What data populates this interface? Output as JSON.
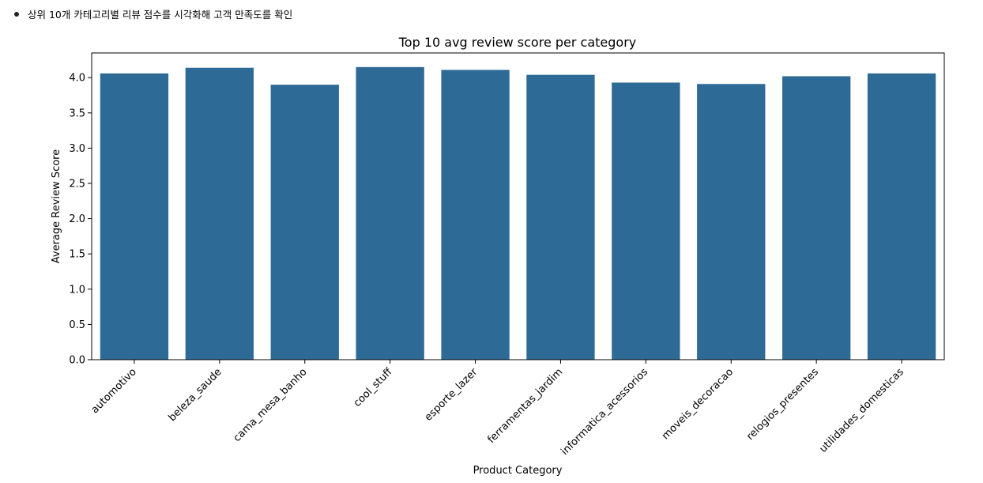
{
  "note": {
    "text": "상위 10개 카테고리별 리뷰 점수를 시각화해 고객 만족도를 확인"
  },
  "chart_data": {
    "type": "bar",
    "title": "Top 10 avg review score per category",
    "xlabel": "Product Category",
    "ylabel": "Average Review Score",
    "categories": [
      "automotivo",
      "beleza_saude",
      "cama_mesa_banho",
      "cool_stuff",
      "esporte_lazer",
      "ferramentas_jardim",
      "informatica_acessorios",
      "moveis_decoracao",
      "relogios_presentes",
      "utilidades_domesticas"
    ],
    "values": [
      4.06,
      4.14,
      3.9,
      4.15,
      4.11,
      4.04,
      3.93,
      3.91,
      4.02,
      4.06
    ],
    "ylim": [
      0,
      4.35
    ],
    "yticks": [
      "0.0",
      "0.5",
      "1.0",
      "1.5",
      "2.0",
      "2.5",
      "3.0",
      "3.5",
      "4.0"
    ],
    "bar_color": "#2e6a96",
    "grid": false,
    "legend": "none"
  }
}
